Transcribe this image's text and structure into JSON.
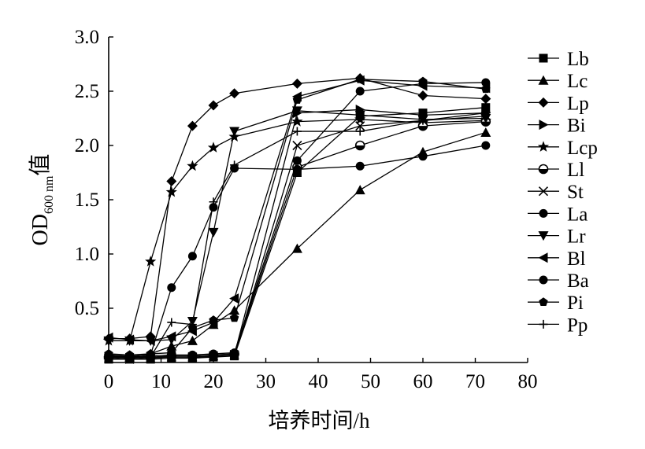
{
  "chart_data": {
    "type": "line",
    "xlabel": "培养时间/h",
    "ylabel": {
      "main": "OD",
      "sub": "600 nm",
      "suffix": "值"
    },
    "xlim": [
      0,
      80
    ],
    "ylim": [
      0,
      3.0
    ],
    "xticks": [
      "0",
      "10",
      "20",
      "30",
      "40",
      "50",
      "60",
      "70",
      "80"
    ],
    "yticks": [
      "0.5",
      "1.0",
      "1.5",
      "2.0",
      "2.5",
      "3.0"
    ],
    "legend_position": "right",
    "grid": false,
    "x": [
      0,
      4,
      8,
      12,
      16,
      20,
      24,
      36,
      48,
      60,
      72
    ],
    "series": [
      {
        "name": "Lb",
        "marker": "square",
        "values": [
          0.03,
          0.03,
          0.03,
          0.04,
          0.04,
          0.05,
          0.06,
          1.75,
          2.27,
          2.3,
          2.35
        ]
      },
      {
        "name": "Lc",
        "marker": "triangle-up",
        "values": [
          0.07,
          0.05,
          0.08,
          0.15,
          0.2,
          0.35,
          0.48,
          1.05,
          1.59,
          1.94,
          2.12
        ]
      },
      {
        "name": "Lp",
        "marker": "diamond",
        "values": [
          0.22,
          0.22,
          0.24,
          1.67,
          2.18,
          2.37,
          2.48,
          2.57,
          2.62,
          2.46,
          2.43
        ]
      },
      {
        "name": "Bi",
        "marker": "triangle-right",
        "values": [
          0.05,
          0.04,
          0.05,
          0.05,
          0.05,
          0.05,
          0.07,
          2.3,
          2.33,
          2.28,
          2.3
        ]
      },
      {
        "name": "Lcp",
        "marker": "star",
        "values": [
          0.2,
          0.2,
          0.93,
          1.57,
          1.81,
          1.98,
          2.08,
          2.22,
          2.24,
          2.21,
          2.23
        ]
      },
      {
        "name": "Ll",
        "marker": "circle-half",
        "values": [
          0.05,
          0.04,
          0.05,
          0.06,
          0.06,
          0.07,
          0.08,
          1.8,
          2.0,
          2.18,
          2.22
        ]
      },
      {
        "name": "St",
        "marker": "x",
        "values": [
          0.04,
          0.03,
          0.04,
          0.05,
          0.05,
          0.06,
          0.07,
          2.0,
          2.18,
          2.23,
          2.27
        ]
      },
      {
        "name": "La",
        "marker": "circle",
        "values": [
          0.06,
          0.05,
          0.06,
          0.07,
          0.07,
          0.08,
          0.09,
          1.86,
          2.5,
          2.57,
          2.58
        ]
      },
      {
        "name": "Lr",
        "marker": "triangle-down",
        "values": [
          0.2,
          0.2,
          0.2,
          0.21,
          0.38,
          1.2,
          2.13,
          2.32,
          2.28,
          2.24,
          2.25
        ]
      },
      {
        "name": "Bl",
        "marker": "triangle-left",
        "values": [
          0.23,
          0.21,
          0.2,
          0.24,
          0.29,
          0.37,
          0.59,
          2.45,
          2.6,
          2.55,
          2.53
        ]
      },
      {
        "name": "Ba",
        "marker": "circle",
        "values": [
          0.07,
          0.06,
          0.07,
          0.69,
          0.98,
          1.43,
          1.79,
          1.78,
          1.81,
          1.9,
          2.0
        ]
      },
      {
        "name": "Pi",
        "marker": "pentagon",
        "values": [
          0.08,
          0.07,
          0.08,
          0.09,
          0.32,
          0.39,
          0.41,
          2.42,
          2.61,
          2.59,
          2.52
        ]
      },
      {
        "name": "Pp",
        "marker": "plus",
        "values": [
          0.05,
          0.05,
          0.05,
          0.37,
          0.35,
          1.48,
          1.82,
          2.13,
          2.13,
          2.23,
          2.3
        ]
      }
    ]
  }
}
